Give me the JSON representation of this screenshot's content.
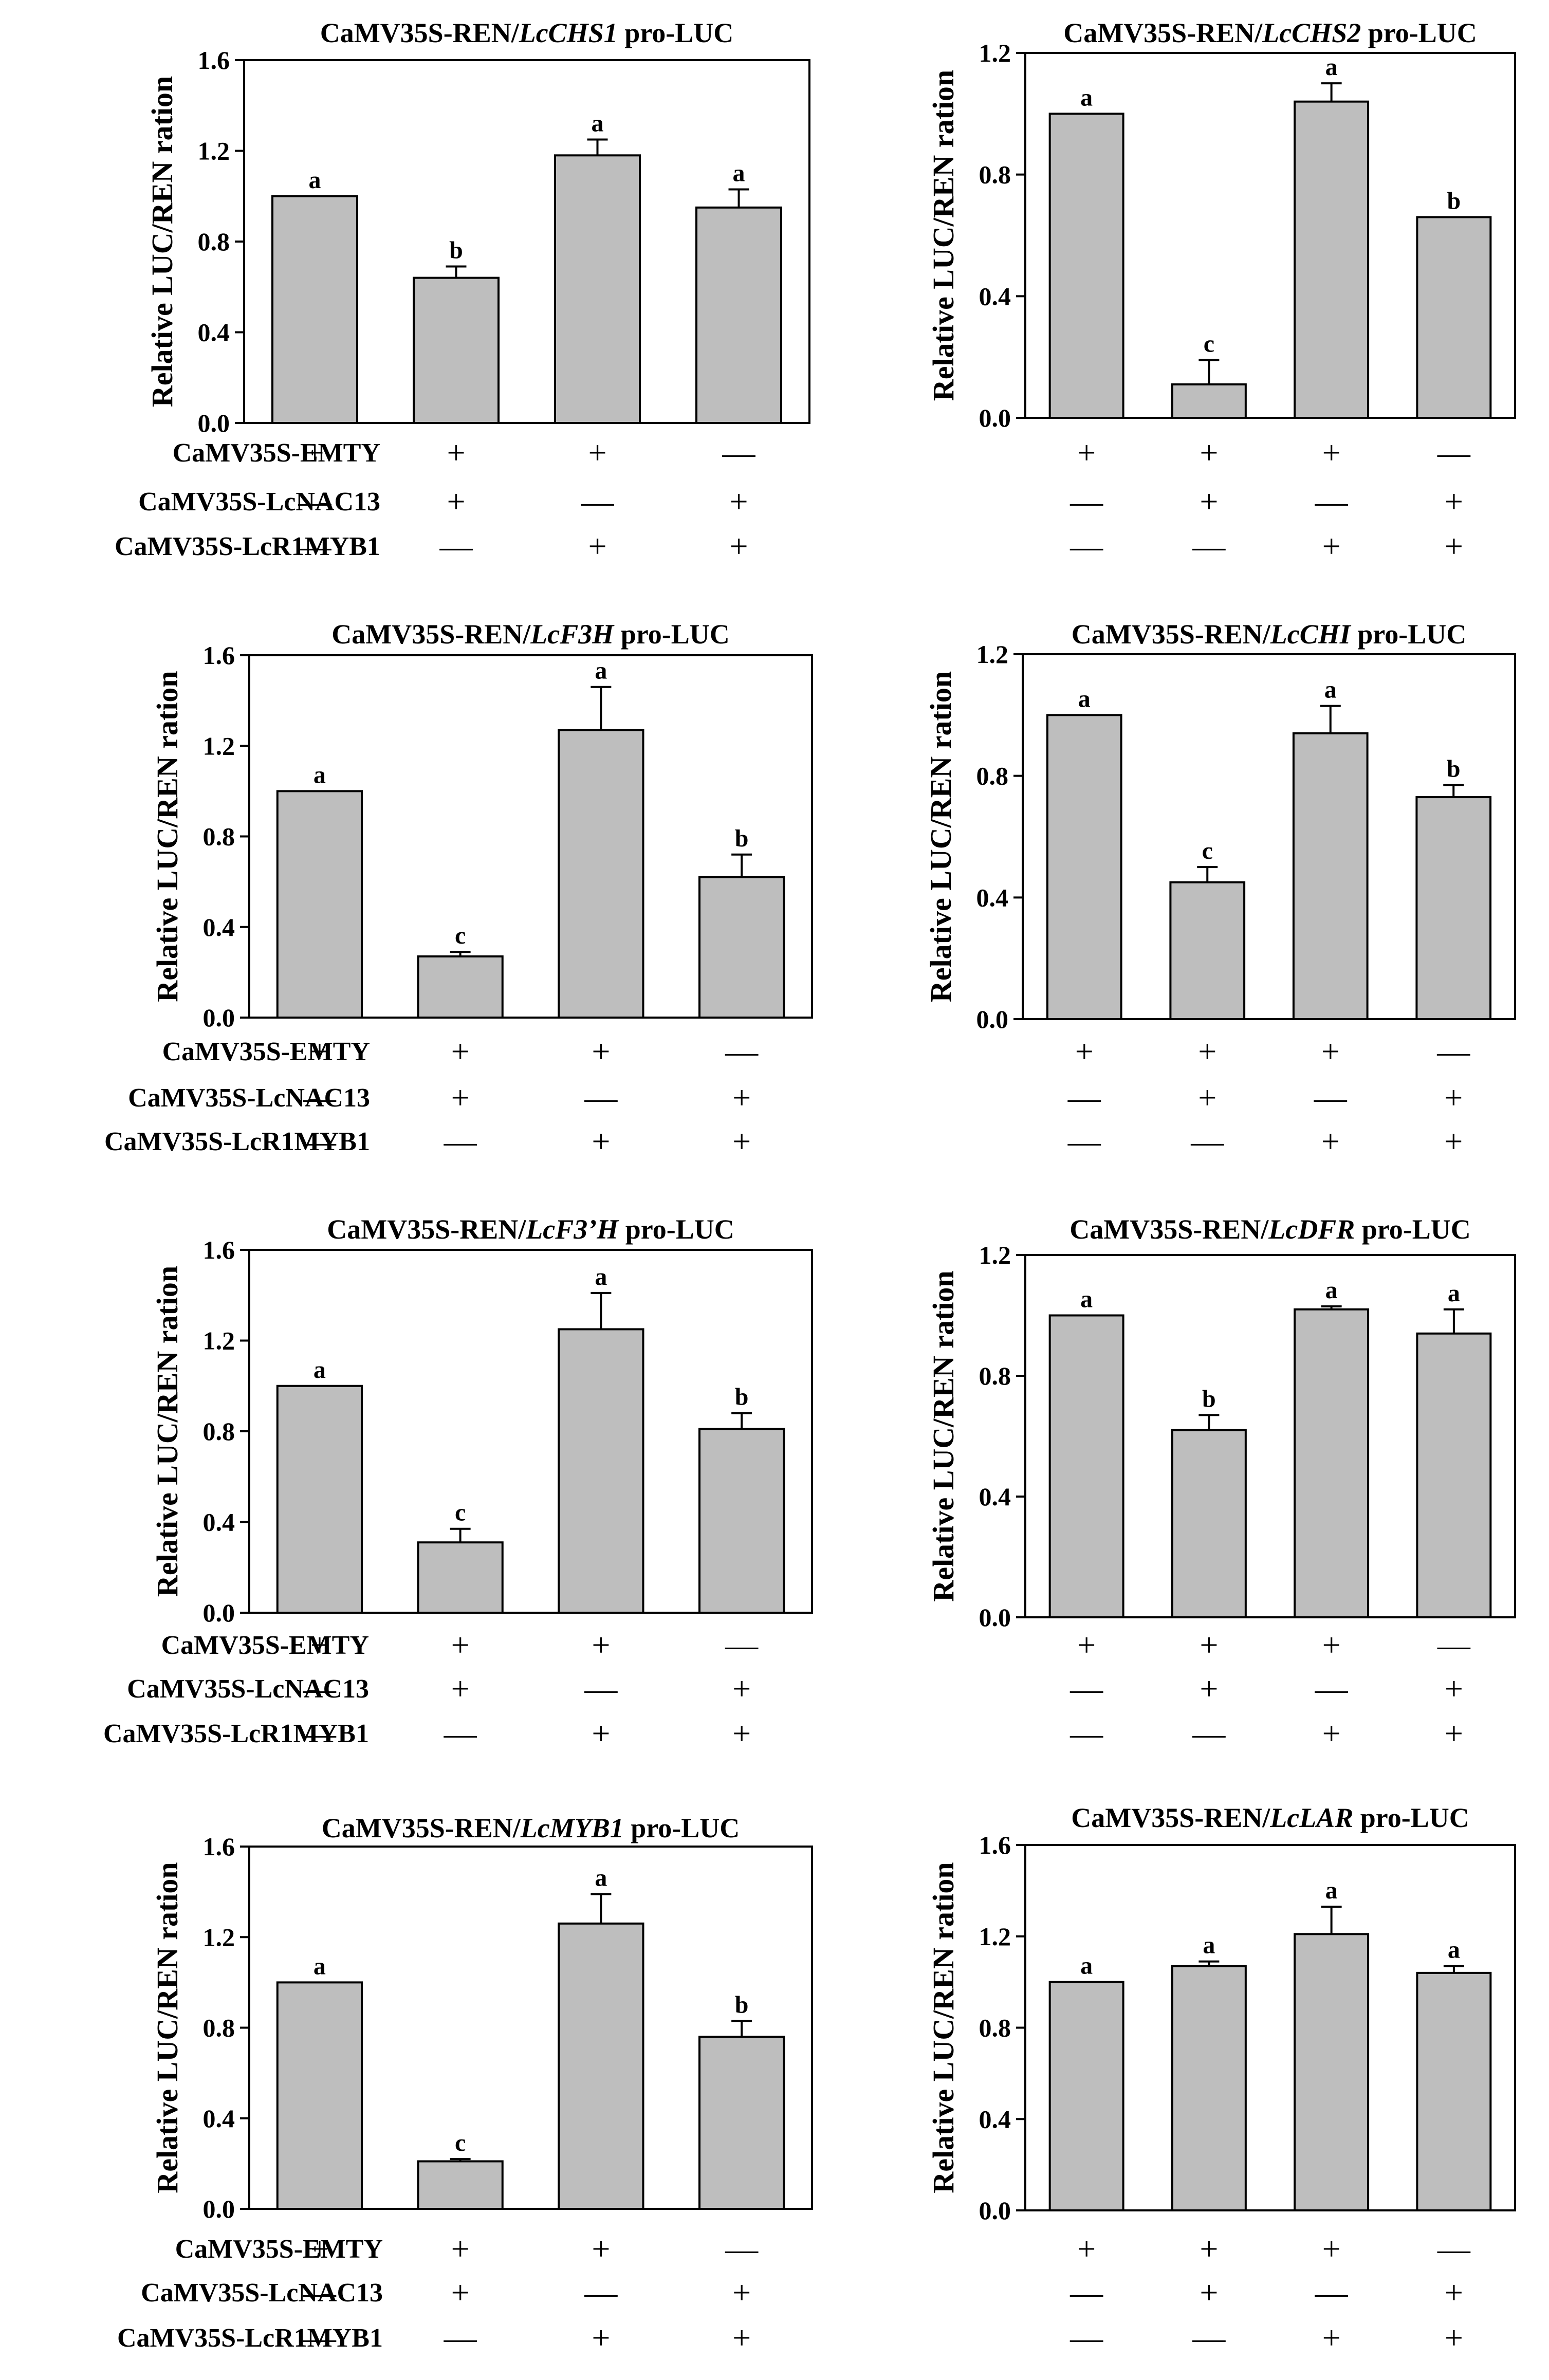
{
  "figure": {
    "treatment_rows": [
      "CaMV35S-EMTY",
      "CaMV35S-LcNAC13",
      "CaMV35S-LcR1MYB1"
    ],
    "treatment_matrix": [
      [
        "+",
        "+",
        "+",
        "—"
      ],
      [
        "—",
        "+",
        "—",
        "+"
      ],
      [
        "—",
        "—",
        "+",
        "+"
      ]
    ]
  },
  "colors": {
    "bar_fill": "#bebebe",
    "stroke": "#000000"
  },
  "chart_data": [
    {
      "type": "bar",
      "title_prefix": "CaMV35S-REN/",
      "title_gene": "LcCHS1",
      "title_suffix": " pro-LUC",
      "ylabel": "Relative LUC/REN ration",
      "ylim": [
        0,
        1.6
      ],
      "yticks": [
        "0.0",
        "0.4",
        "0.8",
        "1.2",
        "1.6"
      ],
      "values": [
        1.0,
        0.64,
        1.18,
        0.95
      ],
      "errors": [
        0.0,
        0.05,
        0.07,
        0.08
      ],
      "letters": [
        "a",
        "b",
        "a",
        "a"
      ]
    },
    {
      "type": "bar",
      "title_prefix": "CaMV35S-REN/",
      "title_gene": "LcCHS2",
      "title_suffix": " pro-LUC",
      "ylabel": "Relative LUC/REN ration",
      "ylim": [
        0,
        1.2
      ],
      "yticks": [
        "0.0",
        "0.4",
        "0.8",
        "1.2"
      ],
      "values": [
        1.0,
        0.11,
        1.04,
        0.66
      ],
      "errors": [
        0.0,
        0.08,
        0.06,
        0.0
      ],
      "letters": [
        "a",
        "c",
        "a",
        "b"
      ]
    },
    {
      "type": "bar",
      "title_prefix": "CaMV35S-REN/",
      "title_gene": "LcF3H",
      "title_suffix": " pro-LUC",
      "ylabel": "Relative LUC/REN ration",
      "ylim": [
        0,
        1.6
      ],
      "yticks": [
        "0.0",
        "0.4",
        "0.8",
        "1.2",
        "1.6"
      ],
      "values": [
        1.0,
        0.27,
        1.27,
        0.62
      ],
      "errors": [
        0.0,
        0.02,
        0.19,
        0.1
      ],
      "letters": [
        "a",
        "c",
        "a",
        "b"
      ]
    },
    {
      "type": "bar",
      "title_prefix": "CaMV35S-REN/",
      "title_gene": "LcCHI",
      "title_suffix": " pro-LUC",
      "ylabel": "Relative LUC/REN ration",
      "ylim": [
        0,
        1.2
      ],
      "yticks": [
        "0.0",
        "0.4",
        "0.8",
        "1.2"
      ],
      "values": [
        1.0,
        0.45,
        0.94,
        0.73
      ],
      "errors": [
        0.0,
        0.05,
        0.09,
        0.04
      ],
      "letters": [
        "a",
        "c",
        "a",
        "b"
      ]
    },
    {
      "type": "bar",
      "title_prefix": "CaMV35S-REN/",
      "title_gene": "LcF3’H",
      "title_suffix": " pro-LUC",
      "ylabel": "Relative LUC/REN ration",
      "ylim": [
        0,
        1.6
      ],
      "yticks": [
        "0.0",
        "0.4",
        "0.8",
        "1.2",
        "1.6"
      ],
      "values": [
        1.0,
        0.31,
        1.25,
        0.81
      ],
      "errors": [
        0.0,
        0.06,
        0.16,
        0.07
      ],
      "letters": [
        "a",
        "c",
        "a",
        "b"
      ]
    },
    {
      "type": "bar",
      "title_prefix": "CaMV35S-REN/",
      "title_gene": "LcDFR",
      "title_suffix": " pro-LUC",
      "ylabel": "Relative LUC/REN ration",
      "ylim": [
        0,
        1.2
      ],
      "yticks": [
        "0.0",
        "0.4",
        "0.8",
        "1.2"
      ],
      "values": [
        1.0,
        0.62,
        1.02,
        0.94
      ],
      "errors": [
        0.0,
        0.05,
        0.01,
        0.08
      ],
      "letters": [
        "a",
        "b",
        "a",
        "a"
      ]
    },
    {
      "type": "bar",
      "title_prefix": "CaMV35S-REN/",
      "title_gene": "LcMYB1",
      "title_suffix": " pro-LUC",
      "ylabel": "Relative LUC/REN ration",
      "ylim": [
        0,
        1.6
      ],
      "yticks": [
        "0.0",
        "0.4",
        "0.8",
        "1.2",
        "1.6"
      ],
      "values": [
        1.0,
        0.21,
        1.26,
        0.76
      ],
      "errors": [
        0.0,
        0.01,
        0.13,
        0.07
      ],
      "letters": [
        "a",
        "c",
        "a",
        "b"
      ]
    },
    {
      "type": "bar",
      "title_prefix": "CaMV35S-REN/",
      "title_gene": "LcLAR",
      "title_suffix": " pro-LUC",
      "ylabel": "Relative LUC/REN ration",
      "ylim": [
        0,
        1.6
      ],
      "yticks": [
        "0.0",
        "0.4",
        "0.8",
        "1.2",
        "1.6"
      ],
      "values": [
        1.0,
        1.07,
        1.21,
        1.04
      ],
      "errors": [
        0.0,
        0.02,
        0.12,
        0.03
      ],
      "letters": [
        "a",
        "a",
        "a",
        "a"
      ]
    }
  ]
}
